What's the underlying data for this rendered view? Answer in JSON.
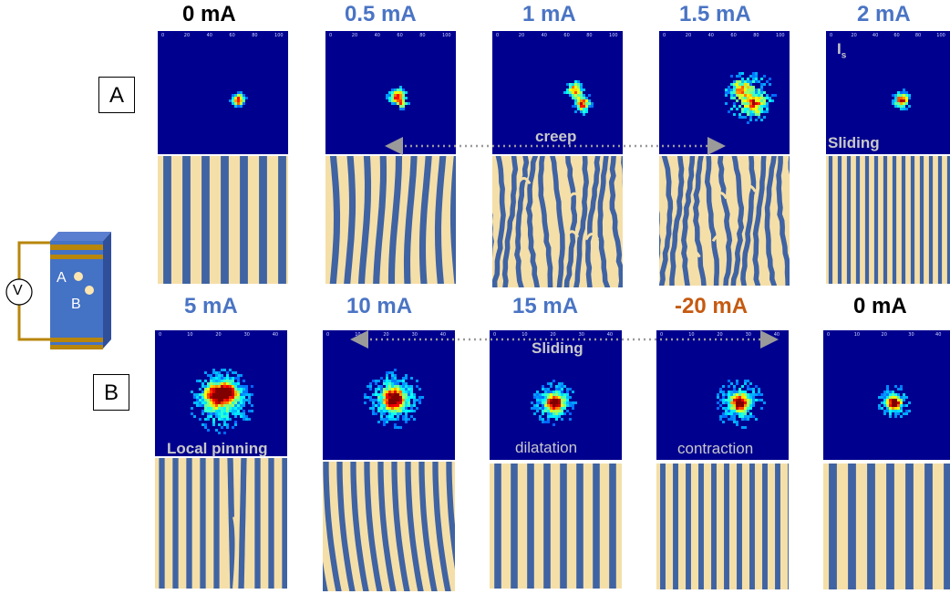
{
  "row_labels": {
    "a": "A",
    "b": "B"
  },
  "row_a_currents": [
    "0 mA",
    "0.5 mA",
    "1 mA",
    "1.5 mA",
    "2 mA"
  ],
  "row_b_currents": [
    "5 mA",
    "10 mA",
    "15 mA",
    "-20 mA",
    "0 mA"
  ],
  "annotations": {
    "creep": "creep",
    "sliding_top": "Sliding",
    "is_label": "I",
    "is_sub": "s",
    "sliding_mid": "Sliding",
    "local_pinning": "Local pinning",
    "dilatation": "dilatation",
    "contraction": "contraction"
  },
  "schematic": {
    "voltmeter": "V",
    "point_a": "A",
    "point_b": "B"
  },
  "colors": {
    "current_blue": "#4a74c4",
    "current_black": "#000000",
    "current_orange": "#c55a11",
    "annotation_gray": "#c8c8c8",
    "heatmap_bg": "#00008f",
    "fringe_light": "#f5dfa8",
    "fringe_dark": "#3f63a3"
  },
  "axis_ticks_row_a": [
    "0",
    "20",
    "40",
    "60",
    "80",
    "100"
  ],
  "axis_ticks_row_b": [
    "0",
    "10",
    "20",
    "30",
    "40"
  ]
}
